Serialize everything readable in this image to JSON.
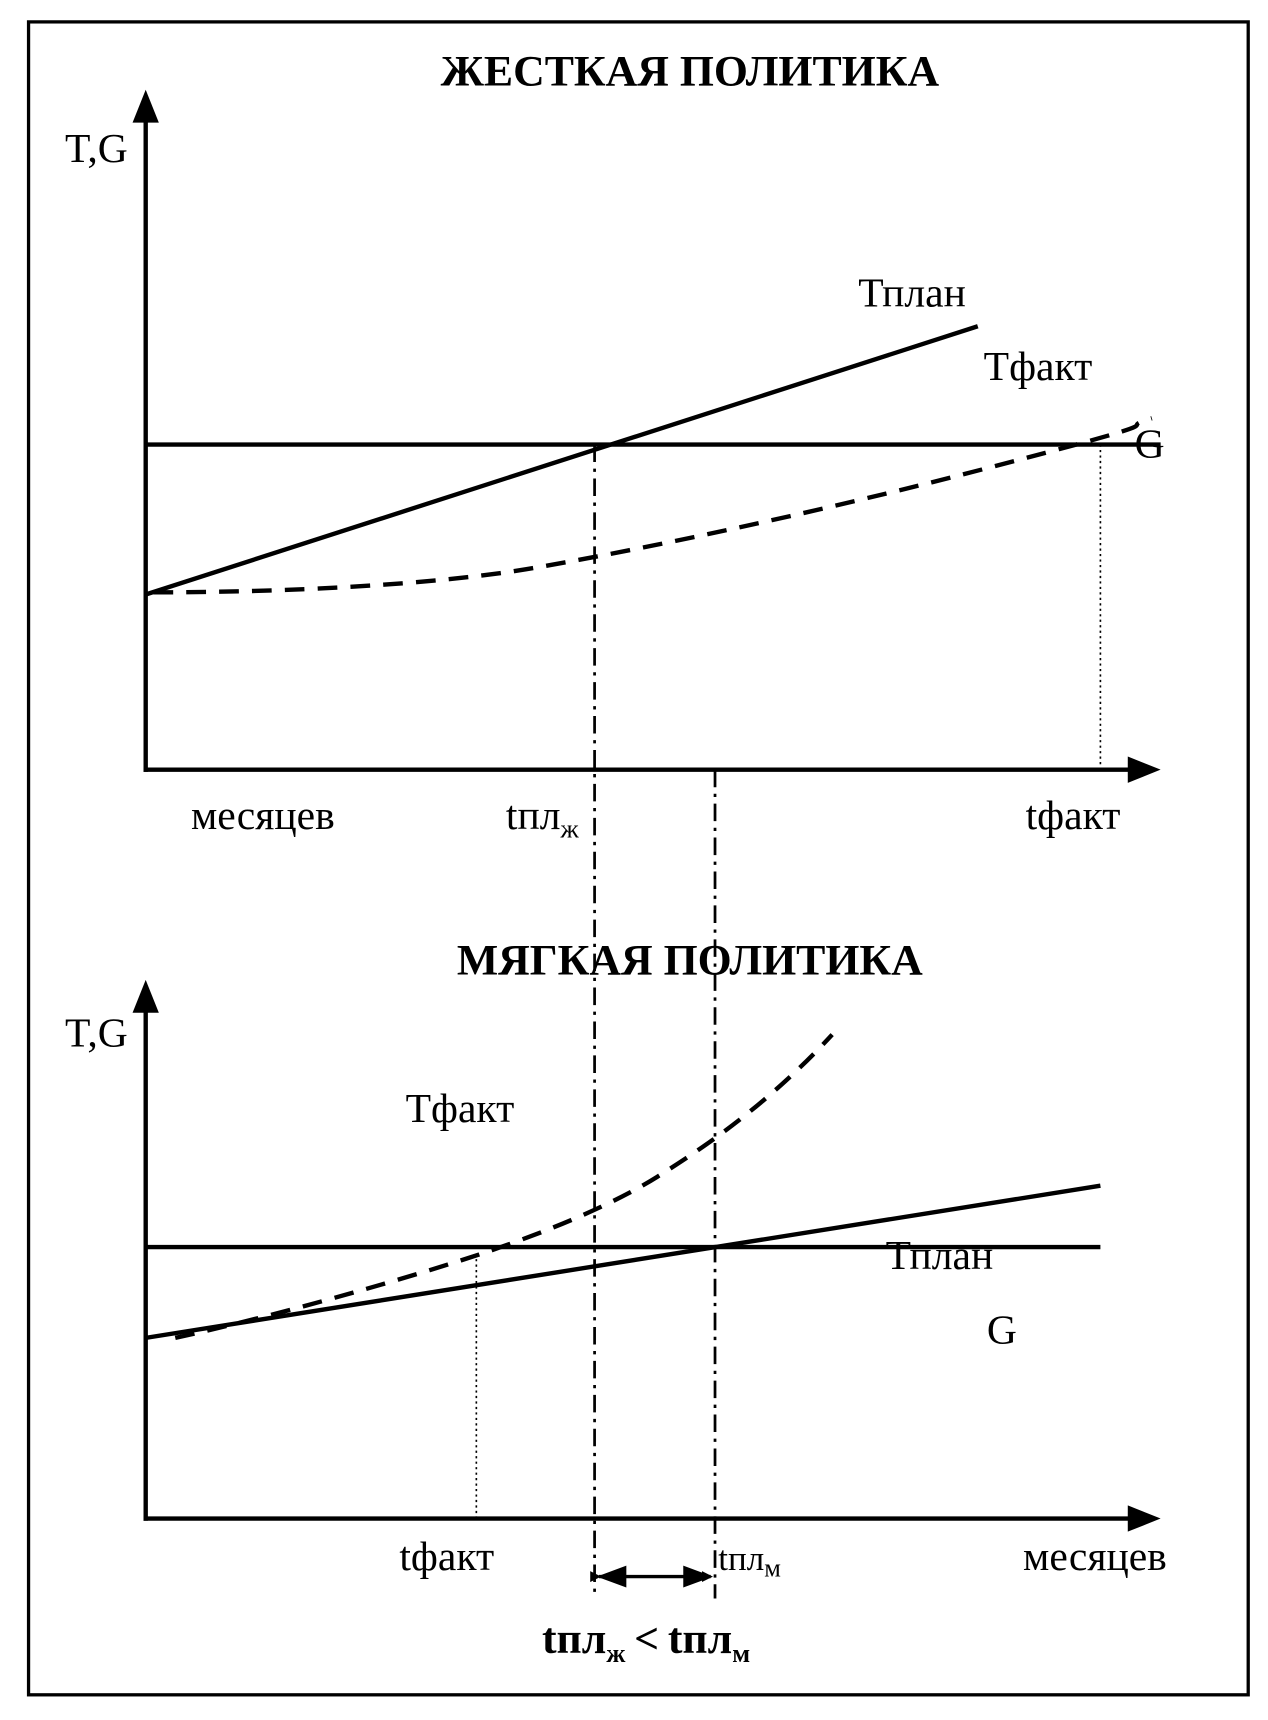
{
  "top": {
    "title": "ЖЕСТКАЯ ПОЛИТИКА",
    "y_label": "T,G",
    "plan_label": "Тплан",
    "fact_label": "Тфакт",
    "g_label": "G",
    "x_label": "месяцев",
    "t_pl": "tпл",
    "t_pl_sub": "ж",
    "t_fact": "tфакт"
  },
  "bottom": {
    "title": "МЯГКАЯ ПОЛИТИКА",
    "y_label": "T,G",
    "plan_label": "Тплан",
    "fact_label": "Тфакт",
    "g_label": "G",
    "x_label": "месяцев",
    "t_pl": "tпл",
    "t_pl_sub": "м",
    "t_fact": "tфакт"
  },
  "comparison": {
    "left": "tпл",
    "left_sub": "ж",
    "operator": "<",
    "right": "tпл",
    "right_sub": "м"
  }
}
